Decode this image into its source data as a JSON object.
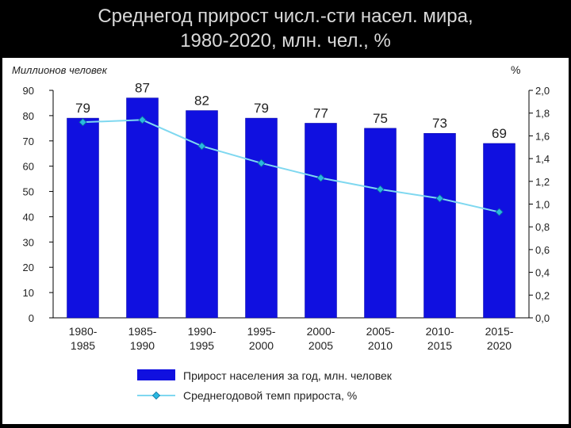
{
  "title_lines": [
    "Среднегод прирост числ.-сти насел. мира,",
    "1980-2020, млн. чел., %"
  ],
  "chart_data": {
    "type": "bar",
    "categories": [
      [
        "1980-",
        "1985"
      ],
      [
        "1985-",
        "1990"
      ],
      [
        "1990-",
        "1995"
      ],
      [
        "1995-",
        "2000"
      ],
      [
        "2000-",
        "2005"
      ],
      [
        "2005-",
        "2010"
      ],
      [
        "2010-",
        "2015"
      ],
      [
        "2015-",
        "2020"
      ]
    ],
    "series": [
      {
        "name": "Прирост населения за год, млн. человек",
        "type": "bar",
        "axis": "left",
        "color": "#1010e0",
        "values": [
          79,
          87,
          82,
          79,
          77,
          75,
          73,
          69
        ],
        "data_labels": [
          "79",
          "87",
          "82",
          "79",
          "77",
          "75",
          "73",
          "69"
        ]
      },
      {
        "name": "Среднегодовой темп прироста, %",
        "type": "line",
        "axis": "right",
        "color": "#7fd8f0",
        "values": [
          1.72,
          1.74,
          1.51,
          1.36,
          1.23,
          1.13,
          1.05,
          0.93
        ]
      }
    ],
    "ylabel": "Миллионов человек",
    "y2label": "%",
    "ylim": [
      0,
      90
    ],
    "y2lim": [
      0,
      2.0
    ],
    "yticks": [
      "0",
      "10",
      "20",
      "30",
      "40",
      "50",
      "60",
      "70",
      "80",
      "90"
    ],
    "y2ticks": [
      "0,0",
      "0,2",
      "0,4",
      "0,6",
      "0,8",
      "1,0",
      "1,2",
      "1,4",
      "1,6",
      "1,8",
      "2,0"
    ],
    "grid": false,
    "legend": "bottom"
  }
}
